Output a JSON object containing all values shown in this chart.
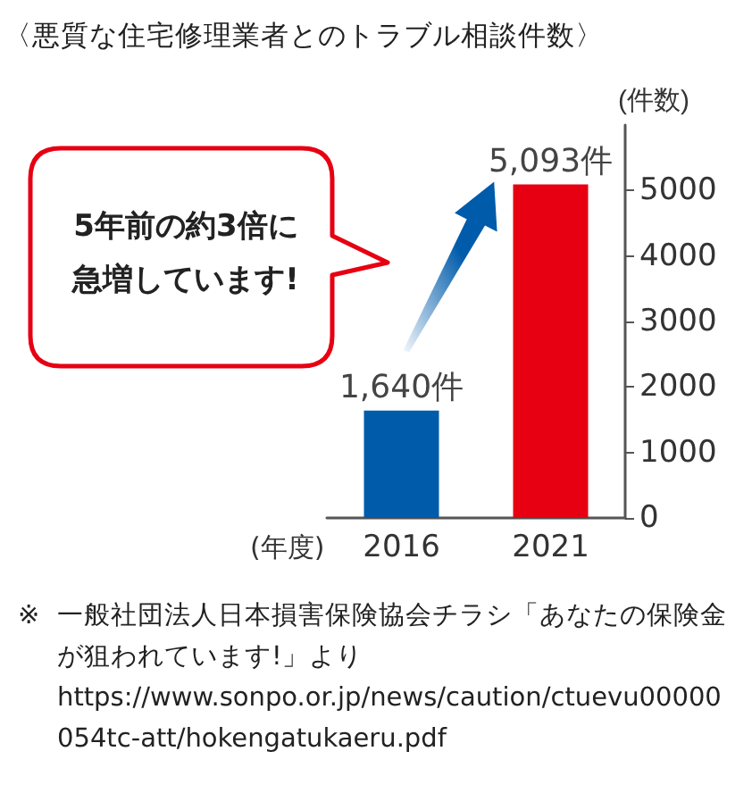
{
  "chart_data": {
    "type": "bar",
    "title": "〈悪質な住宅修理業者とのトラブル相談件数〉",
    "xlabel": "(年度)",
    "ylabel": "(件数)",
    "categories": [
      "2016",
      "2021"
    ],
    "values": [
      1640,
      5093
    ],
    "colors": [
      "#005bab",
      "#e60012"
    ],
    "value_labels": [
      "1,640件",
      "5,093件"
    ],
    "ylim": [
      0,
      6000
    ],
    "yticks": [
      0,
      1000,
      2000,
      3000,
      4000,
      5000
    ],
    "grid": false,
    "annotations": [
      "5年前の約3倍に急増しています!",
      "※ 一般社団法人日本損害保険協会チラシ「あなたの保険金が狙われています!」より",
      "https://www.sonpo.or.jp/news/caution/ctuevu00000054tc-att/hokengatukaeru.pdf"
    ]
  }
}
